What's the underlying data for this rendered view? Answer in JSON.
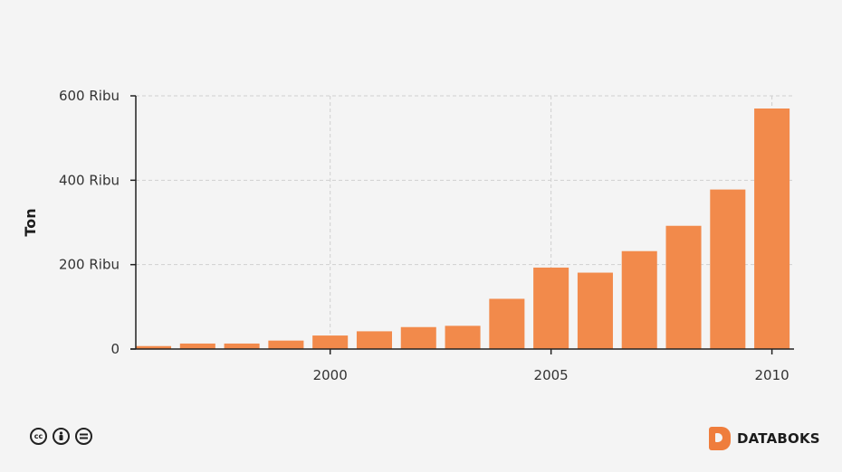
{
  "chart_data": {
    "type": "bar",
    "x": [
      1996,
      1997,
      1998,
      1999,
      2000,
      2001,
      2002,
      2003,
      2004,
      2005,
      2006,
      2007,
      2008,
      2009,
      2010
    ],
    "values": [
      7000,
      13000,
      13000,
      20000,
      32000,
      42000,
      52000,
      55000,
      119000,
      193000,
      181000,
      232000,
      292000,
      378000,
      570000
    ],
    "ylabel": "Ton",
    "xlabel": "",
    "title": "",
    "ylim": [
      0,
      600000
    ],
    "yticks": [
      {
        "value": 0,
        "label": "0"
      },
      {
        "value": 200000,
        "label": "200 Ribu"
      },
      {
        "value": 400000,
        "label": "400 Ribu"
      },
      {
        "value": 600000,
        "label": "600 Ribu"
      }
    ],
    "xticks": [
      {
        "value": 2000,
        "label": "2000"
      },
      {
        "value": 2005,
        "label": "2005"
      },
      {
        "value": 2010,
        "label": "2010"
      }
    ],
    "grid": true,
    "bar_color": "#f28a4b"
  },
  "footer": {
    "license_icons": [
      "cc-icon",
      "by-icon",
      "nd-icon"
    ],
    "brand_name": "DATABOKS",
    "brand_color": "#ef7d3c"
  }
}
